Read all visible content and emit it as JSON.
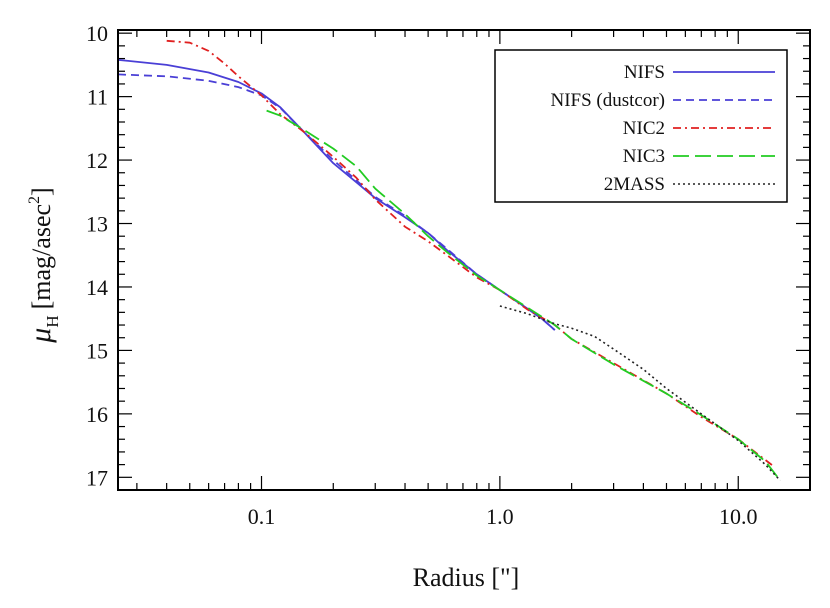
{
  "chart_data": {
    "type": "line",
    "title": "",
    "xlabel": "Radius [\"]",
    "ylabel": {
      "symbol": "μ",
      "subscript": "H",
      "unit": "[mag/asec",
      "superscript": "2",
      "close": "]"
    },
    "xscale": "log",
    "xlim": [
      0.025,
      20
    ],
    "ylim": [
      17.2,
      9.95
    ],
    "y_inverted": true,
    "x_ticks": [
      {
        "value": 0.1,
        "label": "0.1"
      },
      {
        "value": 1.0,
        "label": "1.0"
      },
      {
        "value": 10.0,
        "label": "10.0"
      }
    ],
    "y_ticks": [
      {
        "value": 10,
        "label": "10"
      },
      {
        "value": 11,
        "label": "11"
      },
      {
        "value": 12,
        "label": "12"
      },
      {
        "value": 13,
        "label": "13"
      },
      {
        "value": 14,
        "label": "14"
      },
      {
        "value": 15,
        "label": "15"
      },
      {
        "value": 16,
        "label": "16"
      },
      {
        "value": 17,
        "label": "17"
      }
    ],
    "legend_position": "top-right",
    "series": [
      {
        "name": "NIFS",
        "color": "#4a3fd6",
        "style": "solid",
        "x": [
          0.025,
          0.04,
          0.06,
          0.08,
          0.1,
          0.12,
          0.15,
          0.2,
          0.25,
          0.3,
          0.4,
          0.5,
          0.6,
          0.8,
          1.0,
          1.2,
          1.5,
          1.7
        ],
        "y": [
          10.42,
          10.5,
          10.62,
          10.77,
          10.95,
          11.17,
          11.55,
          12.05,
          12.35,
          12.6,
          12.9,
          13.15,
          13.42,
          13.8,
          14.05,
          14.25,
          14.5,
          14.68
        ]
      },
      {
        "name": "NIFS (dustcor)",
        "color": "#4a3fd6",
        "style": "dashed",
        "x": [
          0.025,
          0.04,
          0.06,
          0.08,
          0.1,
          0.12,
          0.15,
          0.2,
          0.25,
          0.3,
          0.4,
          0.5,
          0.6,
          0.8,
          1.0,
          1.2,
          1.5,
          1.7
        ],
        "y": [
          10.65,
          10.68,
          10.75,
          10.85,
          10.98,
          11.18,
          11.55,
          12.0,
          12.32,
          12.58,
          12.88,
          13.15,
          13.4,
          13.8,
          14.05,
          14.25,
          14.5,
          14.68
        ]
      },
      {
        "name": "NIC2",
        "color": "#e02020",
        "style": "dashdot",
        "x": [
          0.04,
          0.05,
          0.06,
          0.07,
          0.08,
          0.1,
          0.12,
          0.15,
          0.2,
          0.25,
          0.3,
          0.4,
          0.5,
          0.6,
          0.8,
          1.0,
          1.3,
          1.7,
          2.0,
          3.0,
          5.0,
          7.0,
          10.0,
          14.0
        ],
        "y": [
          10.12,
          10.15,
          10.28,
          10.48,
          10.68,
          10.98,
          11.28,
          11.55,
          11.95,
          12.28,
          12.62,
          13.05,
          13.28,
          13.5,
          13.85,
          14.05,
          14.35,
          14.6,
          14.82,
          15.2,
          15.68,
          16.05,
          16.4,
          16.82
        ]
      },
      {
        "name": "NIC3",
        "color": "#22cc22",
        "style": "longdash",
        "x": [
          0.105,
          0.12,
          0.15,
          0.2,
          0.25,
          0.3,
          0.4,
          0.5,
          0.6,
          0.8,
          1.0,
          1.3,
          1.7,
          2.0,
          3.0,
          5.0,
          7.0,
          10.0,
          13.0,
          15.0
        ],
        "y": [
          11.22,
          11.3,
          11.52,
          11.82,
          12.1,
          12.45,
          12.85,
          13.2,
          13.45,
          13.82,
          14.05,
          14.32,
          14.6,
          14.82,
          15.22,
          15.68,
          16.02,
          16.4,
          16.75,
          17.05
        ]
      },
      {
        "name": "2MASS",
        "color": "#222222",
        "style": "dotted",
        "x": [
          1.0,
          1.3,
          1.7,
          2.0,
          2.5,
          3.0,
          4.0,
          5.0,
          7.0,
          10.0,
          13.0,
          15.0
        ],
        "y": [
          14.3,
          14.42,
          14.58,
          14.65,
          14.78,
          14.98,
          15.3,
          15.6,
          16.0,
          16.42,
          16.8,
          17.05
        ]
      }
    ]
  }
}
